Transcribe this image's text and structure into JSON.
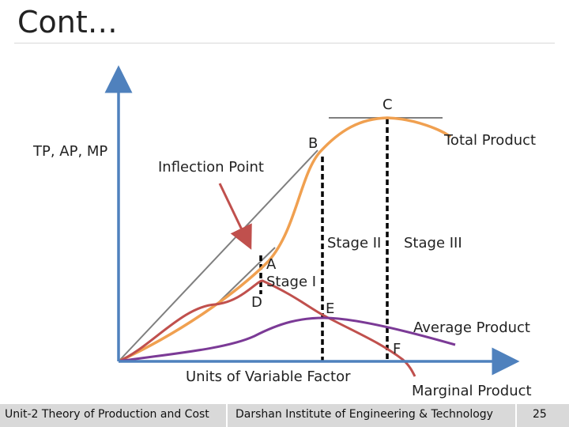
{
  "slide": {
    "title": "Cont…"
  },
  "diagram": {
    "y_axis_label": "TP, AP, MP",
    "x_axis_label": "Units of Variable Factor",
    "inflection_point_label": "Inflection Point",
    "curves": {
      "total_product": "Total Product",
      "average_product": "Average Product",
      "marginal_product": "Marginal Product"
    },
    "points": {
      "a": "A",
      "b": "B",
      "c": "C",
      "d": "D",
      "e": "E",
      "f": "F"
    },
    "stages": {
      "stage_1": "Stage I",
      "stage_2": "Stage II",
      "stage_3": "Stage III"
    },
    "colors": {
      "axis": "#4f81bd",
      "total_product": "#f0a050",
      "average_product": "#7b3a96",
      "marginal_product": "#c0504d",
      "arrow": "#c0504d",
      "tangent": "#7f7f7f",
      "stage_line": "#000000"
    }
  },
  "footer": {
    "left": "Unit-2 Theory of Production and Cost",
    "center": "Darshan Institute of Engineering & Technology",
    "page": "25"
  }
}
